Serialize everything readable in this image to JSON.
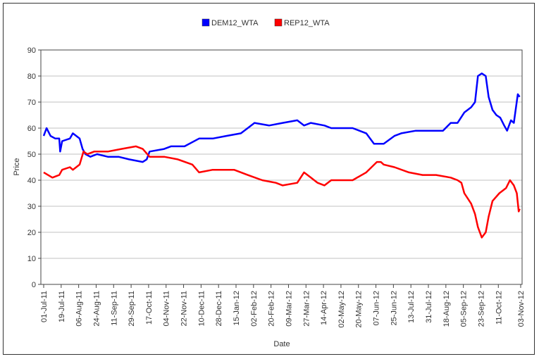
{
  "chart_data": {
    "type": "line",
    "title": "",
    "xlabel": "Date",
    "ylabel": "Price",
    "ylim": [
      0,
      90
    ],
    "yticks": [
      "0",
      "10",
      "20",
      "30",
      "40",
      "50",
      "60",
      "70",
      "80",
      "90"
    ],
    "x_start": "2011-07-01",
    "x_unit": "days since 01-Jul-11",
    "xlim": [
      0,
      491
    ],
    "xtick_labels": [
      "01-Jul-11",
      "19-Jul-11",
      "06-Aug-11",
      "24-Aug-11",
      "11-Sep-11",
      "29-Sep-11",
      "17-Oct-11",
      "04-Nov-11",
      "22-Nov-11",
      "10-Dec-11",
      "28-Dec-11",
      "15-Jan-12",
      "02-Feb-12",
      "20-Feb-12",
      "09-Mar-12",
      "27-Mar-12",
      "14-Apr-12",
      "02-May-12",
      "20-May-12",
      "07-Jun-12",
      "25-Jun-12",
      "13-Jul-12",
      "31-Jul-12",
      "18-Aug-12",
      "05-Sep-12",
      "23-Sep-12",
      "11-Oct-12",
      "03-Nov-12"
    ],
    "grid": "horizontal",
    "legend_position": "top-center",
    "series": [
      {
        "name": "DEM12_WTA",
        "color": "#0000ff",
        "points": [
          [
            0,
            57
          ],
          [
            3,
            60
          ],
          [
            7,
            57
          ],
          [
            12,
            56
          ],
          [
            16,
            56
          ],
          [
            17,
            51
          ],
          [
            19,
            55
          ],
          [
            27,
            56
          ],
          [
            30,
            58
          ],
          [
            37,
            56
          ],
          [
            40,
            52
          ],
          [
            43,
            50
          ],
          [
            48,
            49
          ],
          [
            55,
            50
          ],
          [
            66,
            49
          ],
          [
            77,
            49
          ],
          [
            88,
            48
          ],
          [
            102,
            47
          ],
          [
            106,
            48
          ],
          [
            109,
            51
          ],
          [
            124,
            52
          ],
          [
            131,
            53
          ],
          [
            145,
            53
          ],
          [
            160,
            56
          ],
          [
            174,
            56
          ],
          [
            188,
            57
          ],
          [
            203,
            58
          ],
          [
            210,
            60
          ],
          [
            217,
            62
          ],
          [
            232,
            61
          ],
          [
            246,
            62
          ],
          [
            261,
            63
          ],
          [
            268,
            61
          ],
          [
            275,
            62
          ],
          [
            289,
            61
          ],
          [
            296,
            60
          ],
          [
            318,
            60
          ],
          [
            332,
            58
          ],
          [
            340,
            54
          ],
          [
            350,
            54
          ],
          [
            361,
            57
          ],
          [
            368,
            58
          ],
          [
            383,
            59
          ],
          [
            397,
            59
          ],
          [
            411,
            59
          ],
          [
            419,
            62
          ],
          [
            426,
            62
          ],
          [
            433,
            66
          ],
          [
            440,
            68
          ],
          [
            444,
            70
          ],
          [
            447,
            80
          ],
          [
            451,
            81
          ],
          [
            455,
            80
          ],
          [
            458,
            72
          ],
          [
            462,
            67
          ],
          [
            466,
            65
          ],
          [
            470,
            64
          ],
          [
            474,
            61
          ],
          [
            477,
            59
          ],
          [
            481,
            63
          ],
          [
            484,
            62
          ],
          [
            488,
            73
          ],
          [
            490,
            72
          ]
        ]
      },
      {
        "name": "REP12_WTA",
        "color": "#ff0000",
        "points": [
          [
            0,
            43
          ],
          [
            9,
            41
          ],
          [
            16,
            42
          ],
          [
            19,
            44
          ],
          [
            27,
            45
          ],
          [
            30,
            44
          ],
          [
            37,
            46
          ],
          [
            41,
            51
          ],
          [
            45,
            50
          ],
          [
            52,
            51
          ],
          [
            66,
            51
          ],
          [
            80,
            52
          ],
          [
            95,
            53
          ],
          [
            102,
            52
          ],
          [
            109,
            49
          ],
          [
            124,
            49
          ],
          [
            138,
            48
          ],
          [
            153,
            46
          ],
          [
            160,
            43
          ],
          [
            174,
            44
          ],
          [
            196,
            44
          ],
          [
            210,
            42
          ],
          [
            225,
            40
          ],
          [
            239,
            39
          ],
          [
            246,
            38
          ],
          [
            261,
            39
          ],
          [
            268,
            43
          ],
          [
            275,
            41
          ],
          [
            282,
            39
          ],
          [
            289,
            38
          ],
          [
            296,
            40
          ],
          [
            318,
            40
          ],
          [
            332,
            43
          ],
          [
            343,
            47
          ],
          [
            347,
            47
          ],
          [
            350,
            46
          ],
          [
            361,
            45
          ],
          [
            376,
            43
          ],
          [
            390,
            42
          ],
          [
            404,
            42
          ],
          [
            419,
            41
          ],
          [
            426,
            40
          ],
          [
            430,
            39
          ],
          [
            433,
            35
          ],
          [
            440,
            31
          ],
          [
            444,
            27
          ],
          [
            447,
            22
          ],
          [
            451,
            18
          ],
          [
            455,
            20
          ],
          [
            458,
            26
          ],
          [
            462,
            32
          ],
          [
            469,
            35
          ],
          [
            476,
            37
          ],
          [
            480,
            40
          ],
          [
            484,
            38
          ],
          [
            487,
            35
          ],
          [
            489,
            28
          ],
          [
            490,
            29
          ]
        ]
      }
    ]
  }
}
